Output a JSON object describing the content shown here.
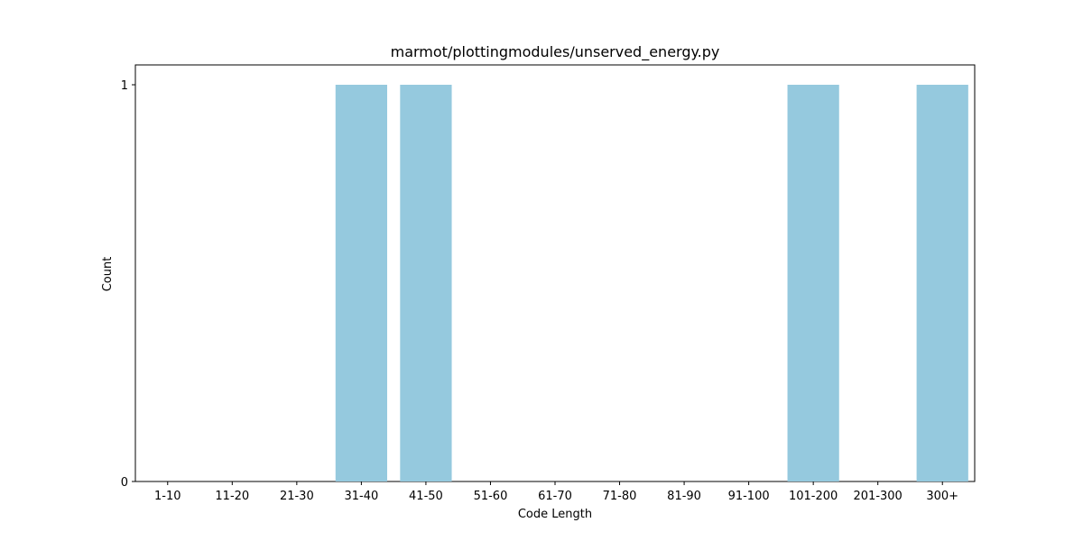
{
  "chart_data": {
    "type": "bar",
    "title": "marmot/plottingmodules/unserved_energy.py",
    "xlabel": "Code Length",
    "ylabel": "Count",
    "categories": [
      "1-10",
      "11-20",
      "21-30",
      "31-40",
      "41-50",
      "51-60",
      "61-70",
      "71-80",
      "81-90",
      "91-100",
      "101-200",
      "201-300",
      "300+"
    ],
    "values": [
      0,
      0,
      0,
      1,
      1,
      0,
      0,
      0,
      0,
      0,
      1,
      0,
      1
    ],
    "ylim": [
      0,
      1.05
    ],
    "yticks": [
      0,
      1
    ],
    "bar_color": "#95c9de",
    "grid": false,
    "legend": "none"
  }
}
